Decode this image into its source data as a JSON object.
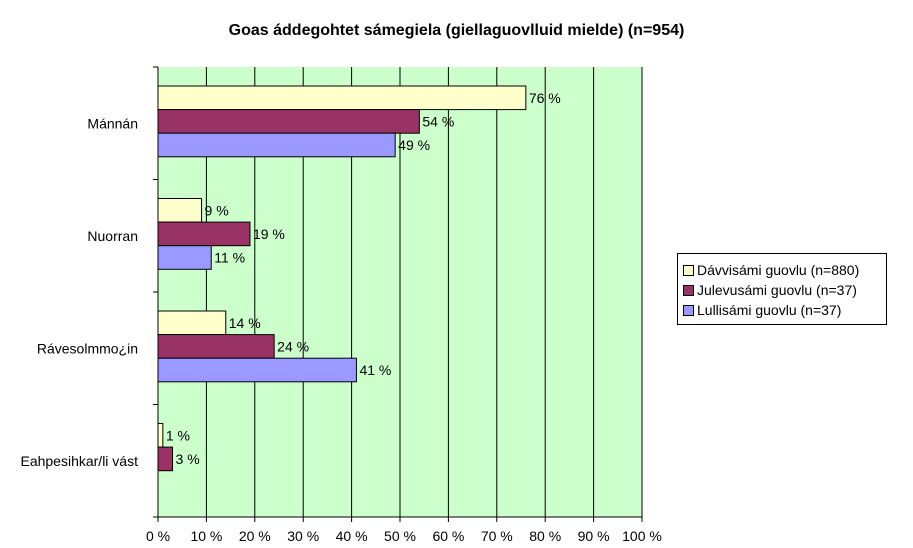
{
  "chart_data": {
    "type": "bar",
    "orientation": "horizontal",
    "title": "Goas áddegohtet sámegiela (giellaguovlluid mielde)  (n=954)",
    "categories": [
      "Mánnán",
      "Nuorran",
      "Rávesolmmo¿in",
      "Eahpesihkar/li vást"
    ],
    "series": [
      {
        "name": "Dávvisámi guovlu (n=880)",
        "color": "#ffffcc",
        "values": [
          76,
          9,
          14,
          1
        ],
        "labels": [
          "76 %",
          "9 %",
          "14 %",
          "1 %"
        ]
      },
      {
        "name": "Julevusámi guovlu (n=37)",
        "color": "#993366",
        "values": [
          54,
          19,
          24,
          3
        ],
        "labels": [
          "54 %",
          "19 %",
          "24 %",
          "3 %"
        ]
      },
      {
        "name": "Lullisámi guovlu (n=37)",
        "color": "#9999ff",
        "values": [
          49,
          11,
          41,
          null
        ],
        "labels": [
          "49 %",
          "11 %",
          "41 %",
          ""
        ]
      }
    ],
    "x_ticks": [
      "0 %",
      "10 %",
      "20 %",
      "30 %",
      "40 %",
      "50 %",
      "60 %",
      "70 %",
      "80 %",
      "90 %",
      "100 %"
    ],
    "xlim": [
      0,
      100
    ],
    "plot_background": "#ccffcc",
    "grid": true,
    "legend_position": "right"
  }
}
